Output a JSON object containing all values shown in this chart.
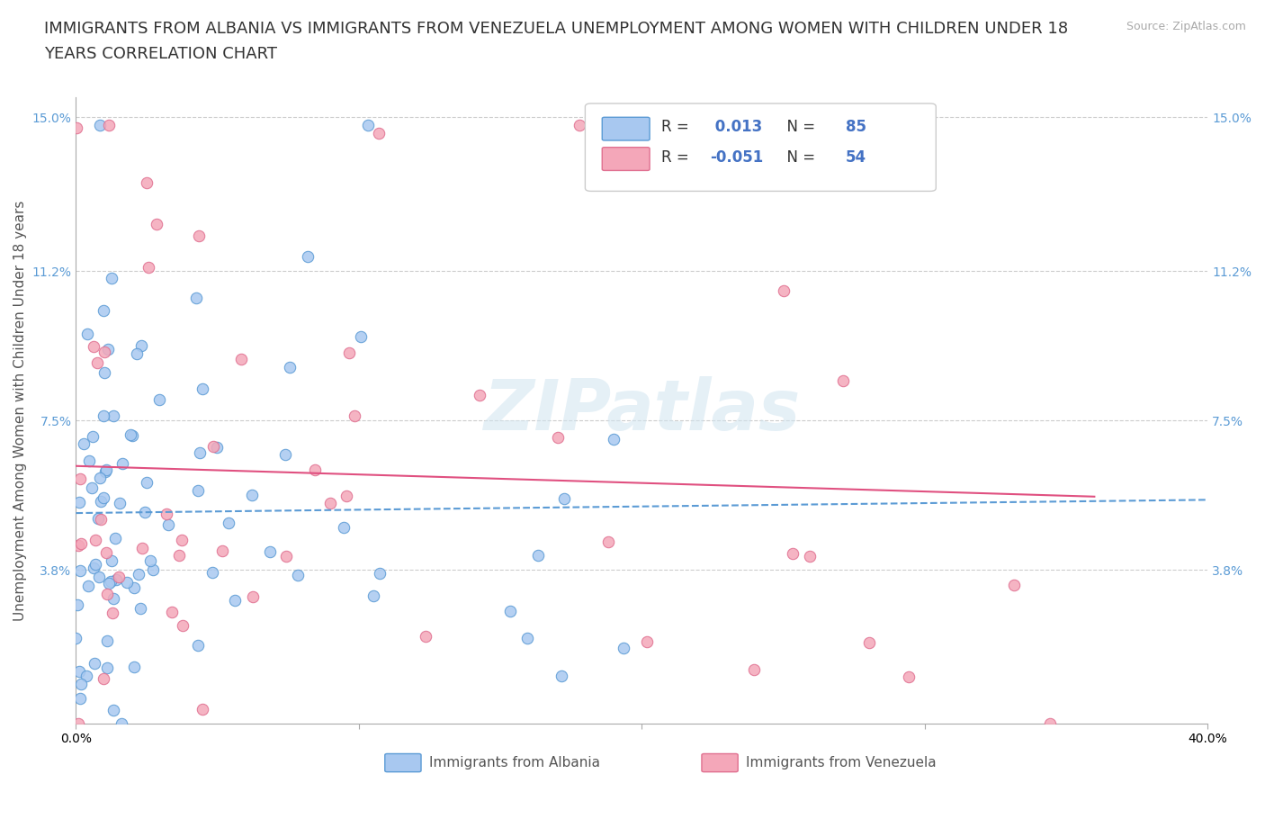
{
  "title_line1": "IMMIGRANTS FROM ALBANIA VS IMMIGRANTS FROM VENEZUELA UNEMPLOYMENT AMONG WOMEN WITH CHILDREN UNDER 18",
  "title_line2": "YEARS CORRELATION CHART",
  "ylabel": "Unemployment Among Women with Children Under 18 years",
  "source": "Source: ZipAtlas.com",
  "watermark": "ZIPatlas",
  "xlim": [
    0.0,
    0.4
  ],
  "ylim": [
    0.0,
    0.155
  ],
  "xtick_positions": [
    0.0,
    0.1,
    0.2,
    0.3,
    0.4
  ],
  "xticklabels": [
    "0.0%",
    "",
    "",
    "",
    "40.0%"
  ],
  "ytick_positions": [
    0.038,
    0.075,
    0.112,
    0.15
  ],
  "ytick_labels": [
    "3.8%",
    "7.5%",
    "11.2%",
    "15.0%"
  ],
  "albania_R": 0.013,
  "albania_N": 85,
  "venezuela_R": -0.051,
  "venezuela_N": 54,
  "albania_color": "#a8c8f0",
  "albania_edge_color": "#5b9bd5",
  "venezuela_color": "#f4a7b9",
  "venezuela_edge_color": "#e07090",
  "albania_trend_color": "#5b9bd5",
  "venezuela_trend_color": "#e05080",
  "grid_color": "#cccccc",
  "background_color": "#ffffff",
  "title_fontsize": 13,
  "label_fontsize": 11,
  "tick_fontsize": 10
}
